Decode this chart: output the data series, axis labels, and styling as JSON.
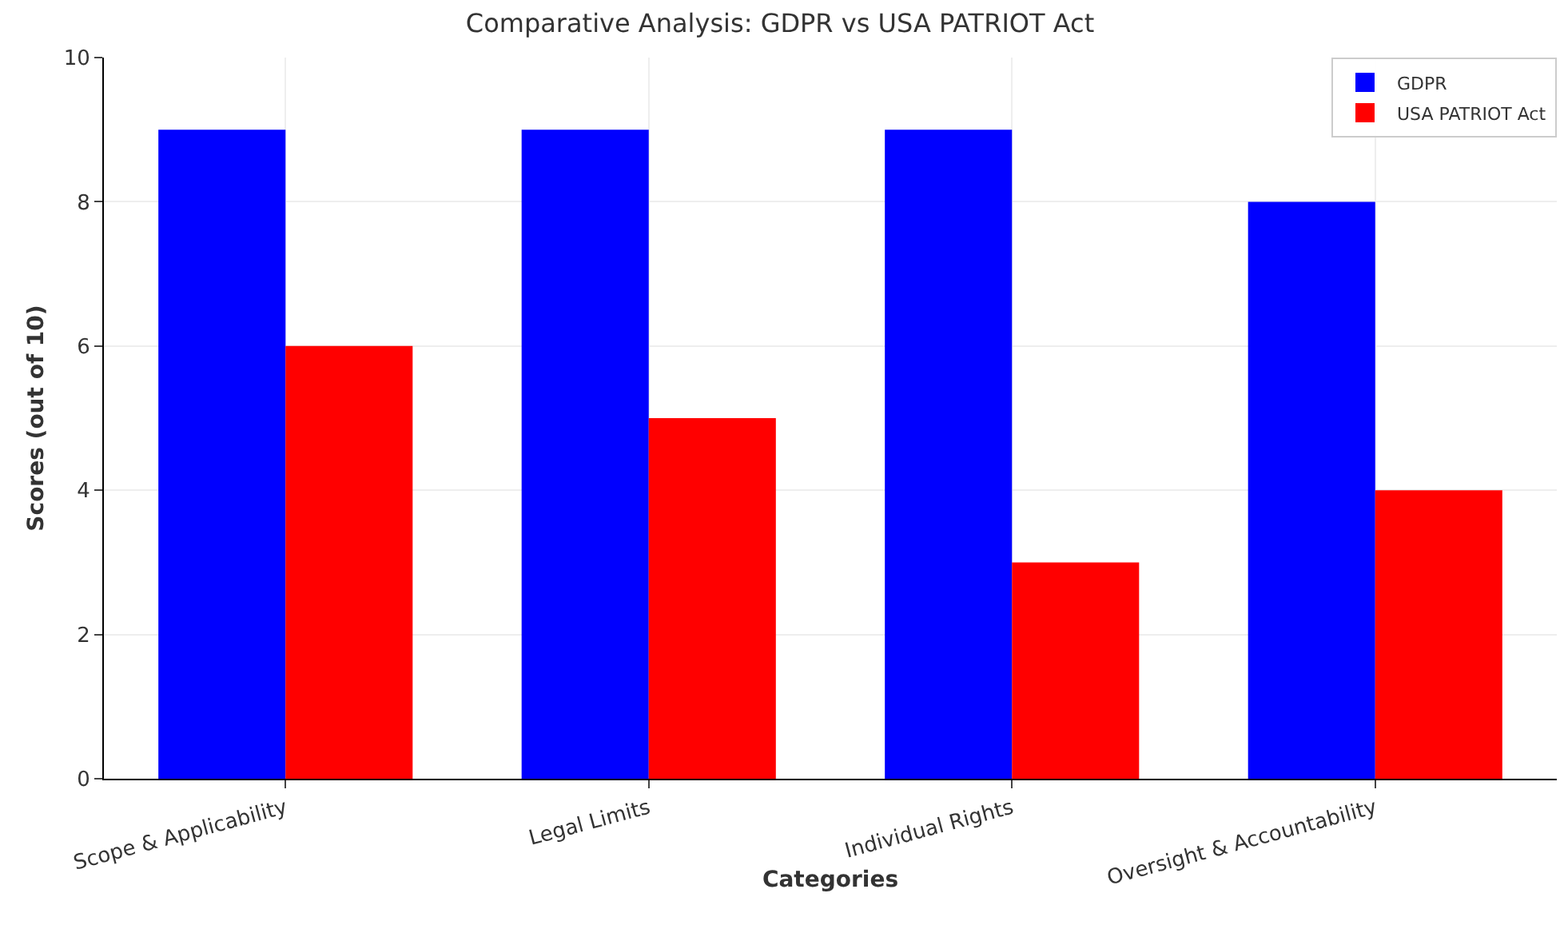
{
  "chart_data": {
    "type": "bar",
    "title": "Comparative Analysis: GDPR vs USA PATRIOT Act",
    "xlabel": "Categories",
    "ylabel": "Scores (out of 10)",
    "categories": [
      "Scope & Applicability",
      "Legal Limits",
      "Individual Rights",
      "Oversight & Accountability"
    ],
    "series": [
      {
        "name": "GDPR",
        "color": "#0000ff",
        "values": [
          9,
          9,
          9,
          8
        ]
      },
      {
        "name": "USA PATRIOT Act",
        "color": "#ff0000",
        "values": [
          6,
          5,
          3,
          4
        ]
      }
    ],
    "ylim": [
      0,
      10
    ],
    "yticks": [
      0,
      2,
      4,
      6,
      8,
      10
    ],
    "grid": true,
    "legend": "top right"
  }
}
